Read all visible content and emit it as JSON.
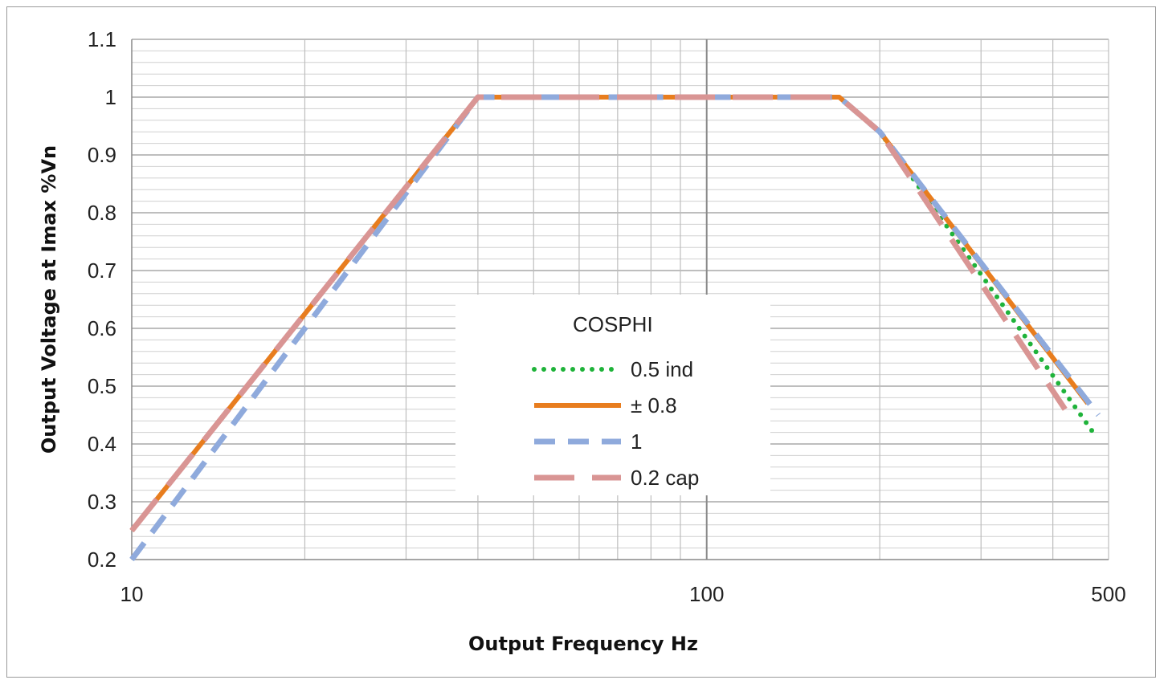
{
  "chart_data": {
    "type": "line",
    "title": "",
    "xlabel": "Output Frequency Hz",
    "ylabel": "Output  Voltage at Imax %Vn",
    "x_scale": "log",
    "xlim": [
      10,
      500
    ],
    "ylim": [
      0.2,
      1.1
    ],
    "x_tick_labels": [
      "10",
      "100",
      "500"
    ],
    "y_tick_labels": [
      "0.2",
      "0.3",
      "0.4",
      "0.5",
      "0.6",
      "0.7",
      "0.8",
      "0.9",
      "1",
      "1.1"
    ],
    "grid": true,
    "legend": {
      "title": "COSPHI",
      "position": "center"
    },
    "series": [
      {
        "name": "0.5 ind",
        "color": "#1fb33a",
        "style": "dotted",
        "x": [
          200,
          470
        ],
        "y": [
          0.94,
          0.42
        ]
      },
      {
        "name": "± 0.8",
        "color": "#e87d1e",
        "style": "solid",
        "x": [
          10,
          40,
          170,
          200,
          460
        ],
        "y": [
          0.25,
          1.0,
          1.0,
          0.94,
          0.47
        ]
      },
      {
        "name": "1",
        "color": "#8faadc",
        "style": "dashed",
        "x": [
          10,
          40,
          170,
          200,
          480
        ],
        "y": [
          0.2,
          1.0,
          1.0,
          0.94,
          0.45
        ]
      },
      {
        "name": "0.2 cap",
        "color": "#d99594",
        "style": "longdash",
        "x": [
          10,
          40,
          170,
          200,
          420
        ],
        "y": [
          0.25,
          1.0,
          1.0,
          0.94,
          0.46
        ]
      }
    ]
  }
}
